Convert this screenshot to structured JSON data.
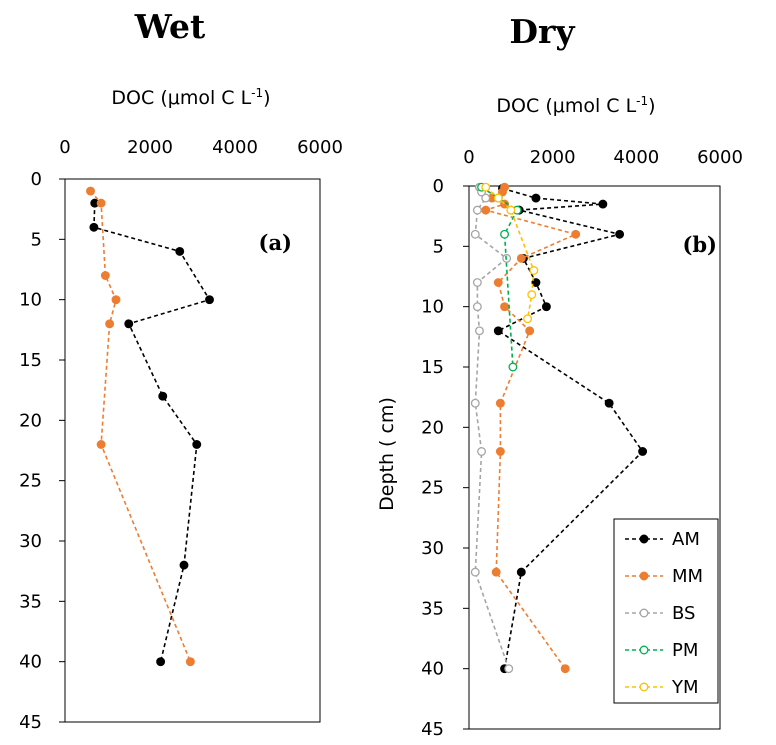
{
  "colors": {
    "AM": "#000000",
    "MM": "#ed7d31",
    "BS": "#a5a5a5",
    "PM": "#00b050",
    "YM": "#ffc000"
  },
  "chart_data": [
    {
      "type": "line",
      "title": "Wet",
      "xlabel": "DOC (μmol C L",
      "xlabel_sup": "-1",
      "xlabel_tail": ")",
      "ylabel": "",
      "panel_label": "(a)",
      "xlim": [
        0,
        6000
      ],
      "ylim": [
        0,
        45
      ],
      "xticks": [
        "0",
        "2000",
        "4000",
        "6000"
      ],
      "yticks": [
        "0",
        "5",
        "10",
        "15",
        "20",
        "25",
        "30",
        "35",
        "40",
        "45"
      ],
      "series": [
        {
          "key": "AM",
          "points": [
            [
              700,
              2
            ],
            [
              680,
              4
            ],
            [
              2700,
              6
            ],
            [
              3400,
              10
            ],
            [
              1500,
              12
            ],
            [
              2300,
              18
            ],
            [
              3100,
              22
            ],
            [
              2800,
              32
            ],
            [
              2250,
              40
            ]
          ]
        },
        {
          "key": "MM",
          "points": [
            [
              600,
              1
            ],
            [
              850,
              2
            ],
            [
              950,
              8
            ],
            [
              1200,
              10
            ],
            [
              1050,
              12
            ],
            [
              850,
              22
            ],
            [
              2950,
              40
            ]
          ]
        }
      ]
    },
    {
      "type": "line",
      "title": "Dry",
      "xlabel": "DOC (μmol C L",
      "xlabel_sup": "-1",
      "xlabel_tail": ")",
      "ylabel": "Depth ( cm)",
      "panel_label": "(b)",
      "xlim": [
        0,
        6000
      ],
      "ylim": [
        0,
        45
      ],
      "xticks": [
        "0",
        "2000",
        "4000",
        "6000"
      ],
      "yticks": [
        "0",
        "5",
        "10",
        "15",
        "20",
        "25",
        "30",
        "35",
        "40",
        "45"
      ],
      "legend_position": "bottom-right",
      "series": [
        {
          "name": "AM",
          "key": "AM",
          "points": [
            [
              800,
              0.2
            ],
            [
              1600,
              1
            ],
            [
              3200,
              1.5
            ],
            [
              1200,
              2
            ],
            [
              3600,
              4
            ],
            [
              1300,
              6
            ],
            [
              1600,
              8
            ],
            [
              1850,
              10
            ],
            [
              700,
              12
            ],
            [
              3350,
              18
            ],
            [
              4150,
              22
            ],
            [
              1250,
              32
            ],
            [
              850,
              40
            ]
          ]
        },
        {
          "name": "MM",
          "key": "MM",
          "points": [
            [
              850,
              0.1
            ],
            [
              800,
              0.5
            ],
            [
              550,
              1
            ],
            [
              850,
              1.5
            ],
            [
              400,
              2
            ],
            [
              2550,
              4
            ],
            [
              1250,
              6
            ],
            [
              700,
              8
            ],
            [
              850,
              10
            ],
            [
              1450,
              12
            ],
            [
              750,
              18
            ],
            [
              750,
              22
            ],
            [
              650,
              32
            ],
            [
              2300,
              40
            ]
          ]
        },
        {
          "name": "BS",
          "key": "BS",
          "points": [
            [
              250,
              0.1
            ],
            [
              300,
              0.5
            ],
            [
              400,
              1
            ],
            [
              200,
              2
            ],
            [
              150,
              4
            ],
            [
              900,
              6
            ],
            [
              200,
              8
            ],
            [
              200,
              10
            ],
            [
              250,
              12
            ],
            [
              150,
              18
            ],
            [
              300,
              22
            ],
            [
              150,
              32
            ],
            [
              950,
              40
            ]
          ]
        },
        {
          "name": "PM",
          "key": "PM",
          "points": [
            [
              300,
              0.1
            ],
            [
              700,
              1
            ],
            [
              1150,
              2
            ],
            [
              850,
              4
            ],
            [
              1050,
              15
            ]
          ]
        },
        {
          "name": "YM",
          "key": "YM",
          "points": [
            [
              400,
              0.1
            ],
            [
              700,
              1
            ],
            [
              1000,
              2
            ],
            [
              1550,
              7
            ],
            [
              1500,
              9
            ],
            [
              1400,
              11
            ]
          ]
        }
      ]
    }
  ]
}
